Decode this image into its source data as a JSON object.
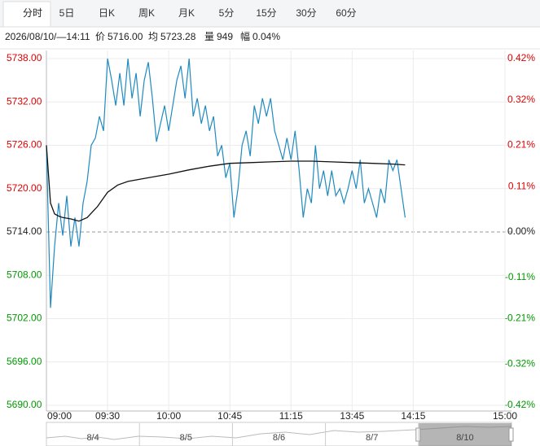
{
  "tabs": [
    "分时",
    "5日",
    "日K",
    "周K",
    "月K",
    "5分",
    "15分",
    "30分",
    "60分"
  ],
  "selected_tab": 0,
  "info": {
    "datetime": "2026/08/10/—14:11",
    "price_label": "价",
    "price": "5716.00",
    "avg_label": "均",
    "avg": "5723.28",
    "volume_label": "量",
    "volume": "949",
    "range_label": "幅",
    "range": "0.04%"
  },
  "navigator": {
    "dates": [
      "8/4",
      "8/5",
      "8/6",
      "8/7",
      "8/10"
    ],
    "selected": 4
  },
  "chart_data": {
    "type": "line",
    "series": [
      {
        "name": "价",
        "color": "#1f8ac0",
        "x": [
          0,
          2,
          4,
          6,
          8,
          10,
          12,
          14,
          16,
          18,
          20,
          22,
          24,
          26,
          28,
          30,
          32,
          34,
          36,
          38,
          40,
          42,
          44,
          46,
          48,
          50,
          52,
          54,
          56,
          58,
          60,
          62,
          64,
          66,
          68,
          70,
          72,
          74,
          76,
          78,
          80,
          82,
          84,
          86,
          88,
          90,
          92,
          94,
          96,
          98,
          100,
          102,
          104,
          106,
          108,
          110,
          112,
          114,
          116,
          118,
          120,
          122,
          124,
          126,
          128,
          130,
          132,
          134,
          136,
          138,
          140,
          142,
          144,
          146,
          148,
          150,
          152,
          154,
          156,
          158,
          160,
          162,
          164,
          166,
          168,
          170,
          172,
          174,
          176
        ],
        "values": [
          5726,
          5703.5,
          5712,
          5718,
          5713.5,
          5719,
          5712,
          5716,
          5712,
          5718,
          5721,
          5726,
          5727,
          5730,
          5728,
          5738,
          5735,
          5731.5,
          5736,
          5731.5,
          5738,
          5732.5,
          5736,
          5730,
          5735,
          5737.5,
          5732.5,
          5726.5,
          5729,
          5731.5,
          5728,
          5731.5,
          5735,
          5737,
          5732.5,
          5738,
          5730,
          5732.5,
          5729,
          5731.5,
          5728,
          5730,
          5724.5,
          5726,
          5721.5,
          5723.5,
          5716,
          5720,
          5726,
          5728,
          5724.5,
          5731.5,
          5729,
          5732.5,
          5730,
          5732.5,
          5728,
          5726,
          5724,
          5727,
          5724,
          5728,
          5722.5,
          5716,
          5720,
          5718,
          5726,
          5720,
          5722.5,
          5719,
          5722.5,
          5719,
          5720,
          5718,
          5720,
          5722.5,
          5720,
          5724,
          5718,
          5720,
          5718,
          5716,
          5720,
          5718,
          5724,
          5722.5,
          5724,
          5720,
          5716
        ]
      },
      {
        "name": "均",
        "color": "#111111",
        "x": [
          0,
          2,
          4,
          6,
          8,
          12,
          16,
          20,
          25,
          30,
          35,
          40,
          50,
          60,
          70,
          80,
          90,
          100,
          110,
          120,
          130,
          140,
          150,
          160,
          170,
          176
        ],
        "values": [
          5726,
          5718,
          5716.5,
          5716.2,
          5716,
          5715.8,
          5715.5,
          5716,
          5717.5,
          5719.5,
          5720.5,
          5721,
          5721.5,
          5722,
          5722.6,
          5723.1,
          5723.5,
          5723.6,
          5723.7,
          5723.8,
          5723.8,
          5723.7,
          5723.6,
          5723.5,
          5723.4,
          5723.28
        ]
      }
    ],
    "xlim": [
      0,
      225
    ],
    "xticks": [
      {
        "value": 0,
        "label": "09:00"
      },
      {
        "value": 30,
        "label": "09:30"
      },
      {
        "value": 60,
        "label": "10:00"
      },
      {
        "value": 90,
        "label": "10:45"
      },
      {
        "value": 120,
        "label": "11:15"
      },
      {
        "value": 150,
        "label": "13:45"
      },
      {
        "value": 180,
        "label": "14:15"
      },
      {
        "value": 225,
        "label": "15:00"
      }
    ],
    "ylim": [
      5690,
      5738
    ],
    "yticks": [
      {
        "value": 5738,
        "label": "5738.00"
      },
      {
        "value": 5732,
        "label": "5732.00"
      },
      {
        "value": 5726,
        "label": "5726.00"
      },
      {
        "value": 5720,
        "label": "5720.00"
      },
      {
        "value": 5714,
        "label": "5714.00"
      },
      {
        "value": 5708,
        "label": "5708.00"
      },
      {
        "value": 5702,
        "label": "5702.00"
      },
      {
        "value": 5696,
        "label": "5696.00"
      },
      {
        "value": 5690,
        "label": "5690.00"
      }
    ],
    "y2lim": [
      -0.42,
      0.42
    ],
    "y2ticks": [
      {
        "value": 0.42,
        "label": "0.42%"
      },
      {
        "value": 0.32,
        "label": "0.32%"
      },
      {
        "value": 0.21,
        "label": "0.21%"
      },
      {
        "value": 0.11,
        "label": "0.11%"
      },
      {
        "value": 0,
        "label": "0.00%"
      },
      {
        "value": -0.11,
        "label": "-0.11%"
      },
      {
        "value": -0.21,
        "label": "-0.21%"
      },
      {
        "value": -0.32,
        "label": "-0.32%"
      },
      {
        "value": -0.42,
        "label": "-0.42%"
      }
    ],
    "reference": 5714,
    "grid": true,
    "up_color": "#e00000",
    "down_color": "#009900",
    "flat_color": "#222222"
  }
}
